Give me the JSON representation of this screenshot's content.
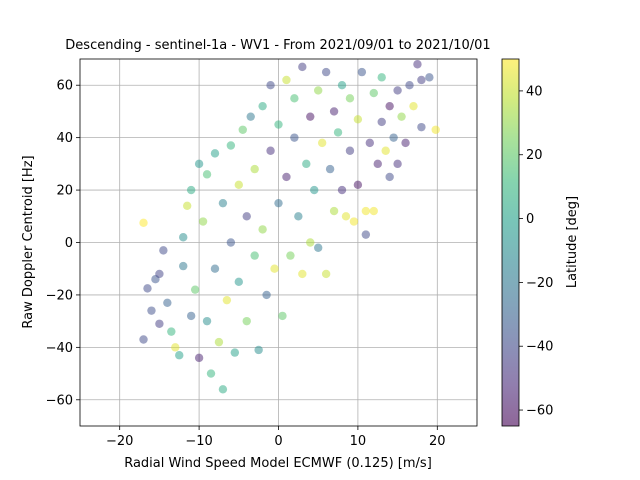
{
  "chart_data": {
    "type": "scatter",
    "title": "Descending - sentinel-1a - WV1 - From 2021/09/01 to 2021/10/01",
    "xlabel": "Radial Wind Speed Model ECMWF (0.125) [m/s]",
    "ylabel": "Raw Doppler Centroid [Hz]",
    "xlim": [
      -25,
      25
    ],
    "ylim": [
      -70,
      70
    ],
    "xticks": [
      -20,
      -10,
      0,
      10,
      20
    ],
    "xtick_labels": [
      "−20",
      "−10",
      "0",
      "10",
      "20"
    ],
    "yticks": [
      -60,
      -40,
      -20,
      0,
      20,
      40,
      60
    ],
    "ytick_labels": [
      "−60",
      "−40",
      "−20",
      "0",
      "20",
      "40",
      "60"
    ],
    "grid": true,
    "colorbar": {
      "label": "Latitude [deg]",
      "colormap": "viridis",
      "range": [
        -65,
        50
      ],
      "ticks": [
        -60,
        -40,
        -20,
        0,
        20,
        40
      ],
      "tick_labels": [
        "−60",
        "−40",
        "−20",
        "0",
        "20",
        "40"
      ]
    },
    "marker_alpha": 0.5,
    "points": [
      {
        "x": -17,
        "y": 7.5,
        "c": 50
      },
      {
        "x": -17,
        "y": -37,
        "c": -40
      },
      {
        "x": -16.5,
        "y": -17.5,
        "c": -40
      },
      {
        "x": -16,
        "y": -26,
        "c": -38
      },
      {
        "x": -15.5,
        "y": -14,
        "c": -35
      },
      {
        "x": -15,
        "y": -12,
        "c": -42
      },
      {
        "x": -15,
        "y": -31,
        "c": -45
      },
      {
        "x": -14.5,
        "y": -3,
        "c": -40
      },
      {
        "x": -14,
        "y": -23,
        "c": -30
      },
      {
        "x": -13.5,
        "y": -34,
        "c": 10
      },
      {
        "x": -13,
        "y": -40,
        "c": 45
      },
      {
        "x": -12.5,
        "y": -43,
        "c": 0
      },
      {
        "x": -12,
        "y": -9,
        "c": -20
      },
      {
        "x": -12,
        "y": 2,
        "c": -10
      },
      {
        "x": -11.5,
        "y": 14,
        "c": 40
      },
      {
        "x": -11,
        "y": -28,
        "c": -30
      },
      {
        "x": -11,
        "y": 20,
        "c": 5
      },
      {
        "x": -10.5,
        "y": -18,
        "c": 20
      },
      {
        "x": -10,
        "y": 30,
        "c": -5
      },
      {
        "x": -10,
        "y": -44,
        "c": -55
      },
      {
        "x": -9.5,
        "y": 8,
        "c": 30
      },
      {
        "x": -9,
        "y": -30,
        "c": -10
      },
      {
        "x": -9,
        "y": 26,
        "c": 15
      },
      {
        "x": -8.5,
        "y": -50,
        "c": 10
      },
      {
        "x": -8,
        "y": -10,
        "c": -25
      },
      {
        "x": -8,
        "y": 34,
        "c": 0
      },
      {
        "x": -7.5,
        "y": -38,
        "c": 35
      },
      {
        "x": -7,
        "y": 15,
        "c": -15
      },
      {
        "x": -7,
        "y": -56,
        "c": 5
      },
      {
        "x": -6.5,
        "y": -22,
        "c": 45
      },
      {
        "x": -6,
        "y": 37,
        "c": 10
      },
      {
        "x": -6,
        "y": 0,
        "c": -35
      },
      {
        "x": -5.5,
        "y": -42,
        "c": 0
      },
      {
        "x": -5,
        "y": 22,
        "c": 40
      },
      {
        "x": -5,
        "y": -15,
        "c": -5
      },
      {
        "x": -4.5,
        "y": 43,
        "c": 20
      },
      {
        "x": -4,
        "y": -30,
        "c": 25
      },
      {
        "x": -4,
        "y": 10,
        "c": -45
      },
      {
        "x": -3.5,
        "y": 48,
        "c": -20
      },
      {
        "x": -3,
        "y": -5,
        "c": 15
      },
      {
        "x": -3,
        "y": 28,
        "c": 35
      },
      {
        "x": -2.5,
        "y": -41,
        "c": -10
      },
      {
        "x": -2,
        "y": 52,
        "c": 5
      },
      {
        "x": -2,
        "y": 5,
        "c": 30
      },
      {
        "x": -1.5,
        "y": -20,
        "c": -30
      },
      {
        "x": -1,
        "y": 35,
        "c": -50
      },
      {
        "x": -1,
        "y": 60,
        "c": -40
      },
      {
        "x": -0.5,
        "y": -10,
        "c": 45
      },
      {
        "x": 0,
        "y": 15,
        "c": -25
      },
      {
        "x": 0,
        "y": 45,
        "c": 10
      },
      {
        "x": 0.5,
        "y": -28,
        "c": 20
      },
      {
        "x": 1,
        "y": 62,
        "c": 40
      },
      {
        "x": 1,
        "y": 25,
        "c": -55
      },
      {
        "x": 1.5,
        "y": -5,
        "c": 25
      },
      {
        "x": 2,
        "y": 40,
        "c": -35
      },
      {
        "x": 2,
        "y": 55,
        "c": 15
      },
      {
        "x": 2.5,
        "y": 10,
        "c": -15
      },
      {
        "x": 3,
        "y": -12,
        "c": 45
      },
      {
        "x": 3,
        "y": 67,
        "c": -45
      },
      {
        "x": 3.5,
        "y": 30,
        "c": 5
      },
      {
        "x": 4,
        "y": 48,
        "c": -60
      },
      {
        "x": 4,
        "y": 0,
        "c": 35
      },
      {
        "x": 4.5,
        "y": 20,
        "c": -5
      },
      {
        "x": 5,
        "y": 58,
        "c": 30
      },
      {
        "x": 5,
        "y": -2,
        "c": -20
      },
      {
        "x": 5.5,
        "y": 38,
        "c": 45
      },
      {
        "x": 6,
        "y": -12,
        "c": 40
      },
      {
        "x": 6,
        "y": 65,
        "c": -40
      },
      {
        "x": 6.5,
        "y": 28,
        "c": -30
      },
      {
        "x": 7,
        "y": 12,
        "c": 35
      },
      {
        "x": 7,
        "y": 50,
        "c": -55
      },
      {
        "x": 7.5,
        "y": 42,
        "c": 10
      },
      {
        "x": 8,
        "y": 20,
        "c": -50
      },
      {
        "x": 8,
        "y": 60,
        "c": 0
      },
      {
        "x": 8.5,
        "y": 10,
        "c": 45
      },
      {
        "x": 9,
        "y": 35,
        "c": -45
      },
      {
        "x": 9,
        "y": 55,
        "c": 25
      },
      {
        "x": 9.5,
        "y": 8,
        "c": 48
      },
      {
        "x": 10,
        "y": 22,
        "c": -60
      },
      {
        "x": 10,
        "y": 47,
        "c": 40
      },
      {
        "x": 10.5,
        "y": 65,
        "c": -35
      },
      {
        "x": 11,
        "y": 3,
        "c": -40
      },
      {
        "x": 11,
        "y": 12,
        "c": 48
      },
      {
        "x": 11.5,
        "y": 38,
        "c": -50
      },
      {
        "x": 12,
        "y": 57,
        "c": 20
      },
      {
        "x": 12,
        "y": 12,
        "c": 48
      },
      {
        "x": 12.5,
        "y": 30,
        "c": -55
      },
      {
        "x": 13,
        "y": 46,
        "c": -45
      },
      {
        "x": 13,
        "y": 63,
        "c": 10
      },
      {
        "x": 13.5,
        "y": 35,
        "c": 45
      },
      {
        "x": 14,
        "y": 25,
        "c": -40
      },
      {
        "x": 14,
        "y": 52,
        "c": -60
      },
      {
        "x": 14.5,
        "y": 40,
        "c": -30
      },
      {
        "x": 15,
        "y": 30,
        "c": -50
      },
      {
        "x": 15,
        "y": 58,
        "c": -45
      },
      {
        "x": 15.5,
        "y": 48,
        "c": 30
      },
      {
        "x": 16,
        "y": 38,
        "c": -55
      },
      {
        "x": 16.5,
        "y": 60,
        "c": -40
      },
      {
        "x": 17,
        "y": 52,
        "c": 45
      },
      {
        "x": 17.5,
        "y": 68,
        "c": -50
      },
      {
        "x": 18,
        "y": 62,
        "c": -45
      },
      {
        "x": 18,
        "y": 44,
        "c": -40
      },
      {
        "x": 19,
        "y": 63,
        "c": -35
      },
      {
        "x": 19.8,
        "y": 43,
        "c": 48
      }
    ]
  },
  "colors": {
    "viridis": [
      "#440154",
      "#482878",
      "#3e4989",
      "#31688e",
      "#26828e",
      "#1f9e89",
      "#35b779",
      "#6ece58",
      "#b5de2b",
      "#fde725"
    ],
    "grid": "#b0b0b0",
    "axes": "#000000"
  }
}
